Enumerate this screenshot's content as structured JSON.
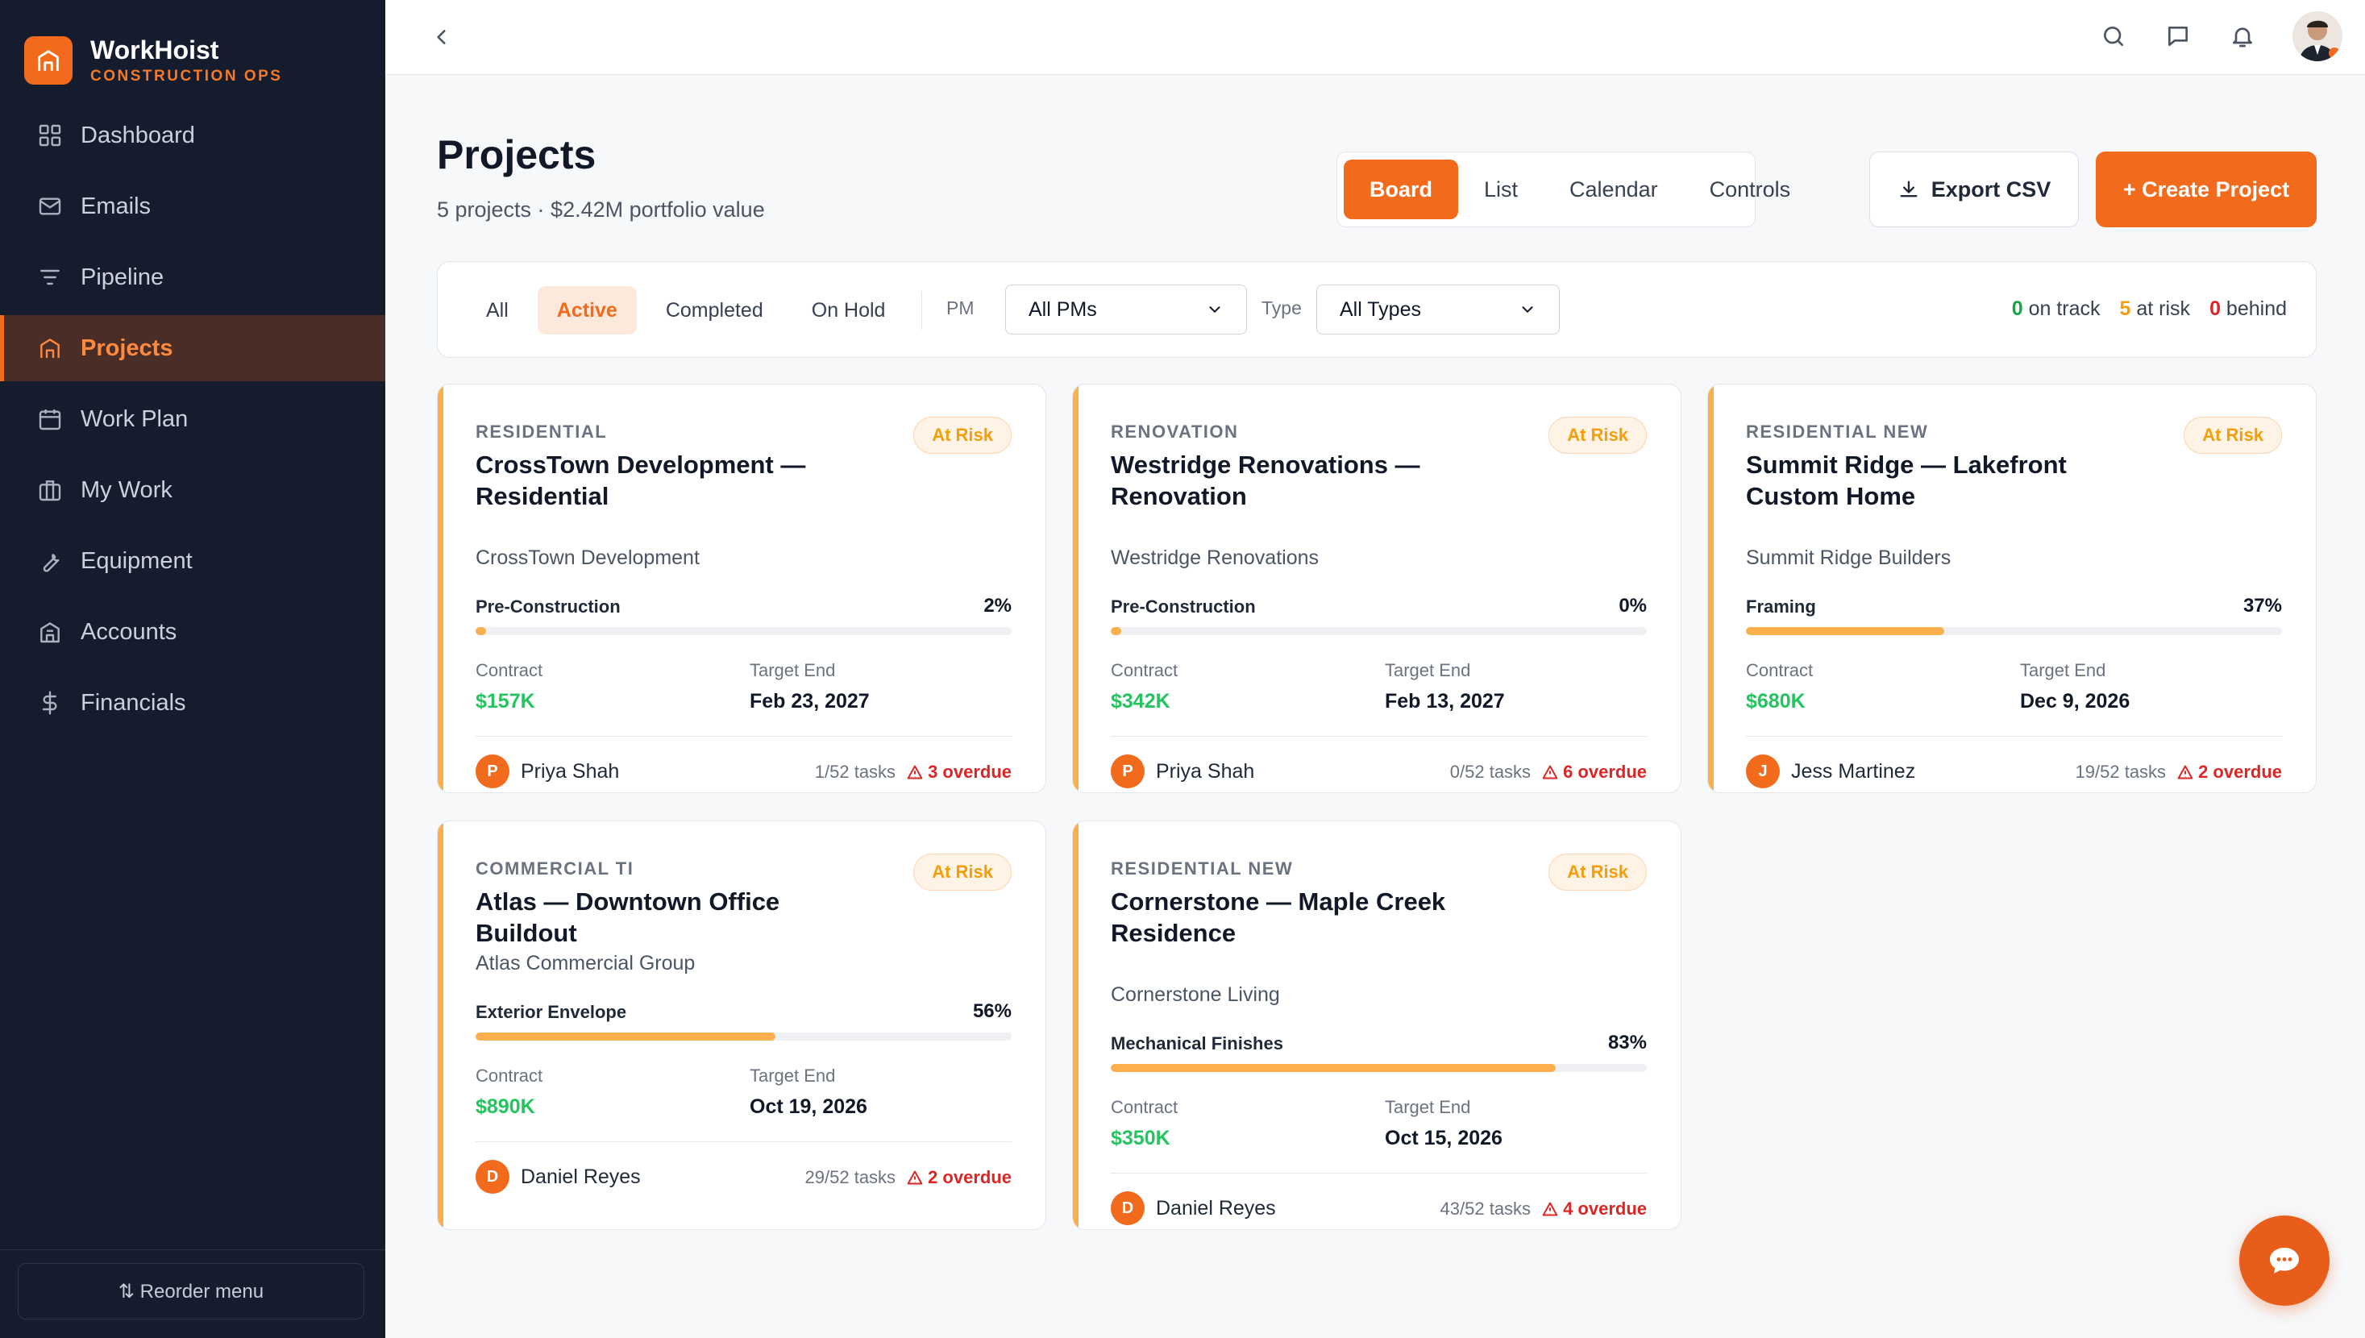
{
  "brand": {
    "name": "WorkHoist",
    "subtitle": "CONSTRUCTION OPS"
  },
  "sidebar": {
    "items": [
      {
        "label": "Dashboard",
        "icon": "grid-icon"
      },
      {
        "label": "Emails",
        "icon": "mail-icon"
      },
      {
        "label": "Pipeline",
        "icon": "filter-icon"
      },
      {
        "label": "Projects",
        "icon": "home-icon",
        "active": true
      },
      {
        "label": "Work Plan",
        "icon": "calendar-icon"
      },
      {
        "label": "My Work",
        "icon": "briefcase-icon"
      },
      {
        "label": "Equipment",
        "icon": "wrench-icon"
      },
      {
        "label": "Accounts",
        "icon": "building-icon"
      },
      {
        "label": "Financials",
        "icon": "dollar-icon"
      }
    ],
    "reorder_label": "⇅ Reorder menu"
  },
  "header": {
    "title": "Projects",
    "subtitle": "5 projects · $2.42M portfolio value"
  },
  "view_tabs": [
    "Board",
    "List",
    "Calendar",
    "Controls"
  ],
  "active_view": "Board",
  "actions": {
    "export_label": "Export CSV",
    "create_label": "+ Create Project"
  },
  "filters": {
    "status_tabs": [
      "All",
      "Active",
      "Completed",
      "On Hold"
    ],
    "active_status": "Active",
    "pm_label": "PM",
    "pm_value": "All PMs",
    "type_label": "Type",
    "type_value": "All Types"
  },
  "summary": {
    "on_track_count": "0",
    "on_track_label": "on track",
    "at_risk_count": "5",
    "at_risk_label": "at risk",
    "behind_count": "0",
    "behind_label": "behind"
  },
  "labels": {
    "contract": "Contract",
    "target_end": "Target End"
  },
  "projects": [
    {
      "category": "RESIDENTIAL",
      "badge": "At Risk",
      "title": "CrossTown Development — Residential",
      "client": "CrossTown Development",
      "phase": "Pre-Construction",
      "progress": 2,
      "progress_label": "2%",
      "contract": "$157K",
      "target_end": "Feb 23, 2027",
      "pm_initial": "P",
      "pm_name": "Priya Shah",
      "tasks": "1/52 tasks",
      "overdue": "3 overdue"
    },
    {
      "category": "RENOVATION",
      "badge": "At Risk",
      "title": "Westridge Renovations — Renovation",
      "client": "Westridge Renovations",
      "phase": "Pre-Construction",
      "progress": 0,
      "progress_label": "0%",
      "contract": "$342K",
      "target_end": "Feb 13, 2027",
      "pm_initial": "P",
      "pm_name": "Priya Shah",
      "tasks": "0/52 tasks",
      "overdue": "6 overdue"
    },
    {
      "category": "RESIDENTIAL NEW",
      "badge": "At Risk",
      "title": "Summit Ridge — Lakefront Custom Home",
      "client": "Summit Ridge Builders",
      "phase": "Framing",
      "progress": 37,
      "progress_label": "37%",
      "contract": "$680K",
      "target_end": "Dec 9, 2026",
      "pm_initial": "J",
      "pm_name": "Jess Martinez",
      "tasks": "19/52 tasks",
      "overdue": "2 overdue"
    },
    {
      "category": "COMMERCIAL TI",
      "badge": "At Risk",
      "title": "Atlas — Downtown Office Buildout",
      "client": "Atlas Commercial Group",
      "phase": "Exterior Envelope",
      "progress": 56,
      "progress_label": "56%",
      "contract": "$890K",
      "target_end": "Oct 19, 2026",
      "pm_initial": "D",
      "pm_name": "Daniel Reyes",
      "tasks": "29/52 tasks",
      "overdue": "2 overdue"
    },
    {
      "category": "RESIDENTIAL NEW",
      "badge": "At Risk",
      "title": "Cornerstone — Maple Creek Residence",
      "client": "Cornerstone Living",
      "phase": "Mechanical Finishes",
      "progress": 83,
      "progress_label": "83%",
      "contract": "$350K",
      "target_end": "Oct 15, 2026",
      "pm_initial": "D",
      "pm_name": "Daniel Reyes",
      "tasks": "43/52 tasks",
      "overdue": "4 overdue"
    }
  ]
}
